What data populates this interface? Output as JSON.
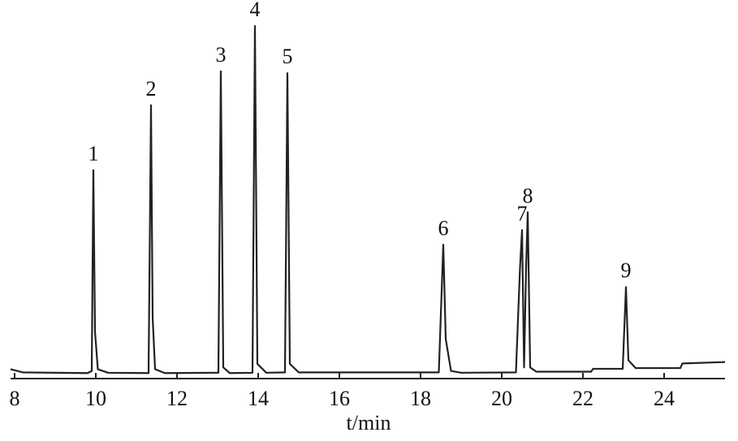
{
  "chart_data": {
    "type": "line",
    "x_label": "t/min",
    "xlim": [
      7.9,
      25.5
    ],
    "xticks": [
      8,
      10,
      12,
      14,
      16,
      18,
      20,
      22,
      24
    ],
    "ylim": [
      0,
      100
    ],
    "series": [
      {
        "color": "#222222",
        "x": [
          7.9,
          8.2,
          9.8,
          9.9,
          9.94,
          9.98,
          10.05,
          10.3,
          11.3,
          11.36,
          11.4,
          11.46,
          11.7,
          13.02,
          13.08,
          13.14,
          13.3,
          13.86,
          13.92,
          13.98,
          14.2,
          14.66,
          14.72,
          14.78,
          15.0,
          18.45,
          18.56,
          18.62,
          18.75,
          19.0,
          20.35,
          20.45,
          20.5,
          20.55,
          20.6,
          20.64,
          20.7,
          20.85,
          22.2,
          22.25,
          22.98,
          23.06,
          23.12,
          23.3,
          24.4,
          24.45,
          25.5
        ],
        "values": [
          1.5,
          0.6,
          0.4,
          1.0,
          57.3,
          12,
          1.5,
          0.5,
          0.4,
          75.5,
          16,
          1.5,
          0.4,
          0.5,
          85,
          2,
          0.4,
          0.5,
          97.7,
          3,
          0.5,
          0.6,
          84.5,
          3,
          0.6,
          0.6,
          36.4,
          10,
          1,
          0.5,
          0.6,
          30,
          40.5,
          2,
          30,
          45.5,
          2,
          0.8,
          0.8,
          1.6,
          1.6,
          24.5,
          4,
          1.8,
          1.8,
          3.1,
          3.5
        ]
      }
    ],
    "peaks": [
      {
        "label": "1",
        "x": 9.94,
        "value": 57.3
      },
      {
        "label": "2",
        "x": 11.36,
        "value": 75.5
      },
      {
        "label": "3",
        "x": 13.08,
        "value": 85
      },
      {
        "label": "4",
        "x": 13.92,
        "value": 97.7
      },
      {
        "label": "5",
        "x": 14.72,
        "value": 84.5
      },
      {
        "label": "6",
        "x": 18.56,
        "value": 36.4
      },
      {
        "label": "7",
        "x": 20.5,
        "value": 40.5
      },
      {
        "label": "8",
        "x": 20.64,
        "value": 45.5
      },
      {
        "label": "9",
        "x": 23.06,
        "value": 24.5
      }
    ]
  }
}
